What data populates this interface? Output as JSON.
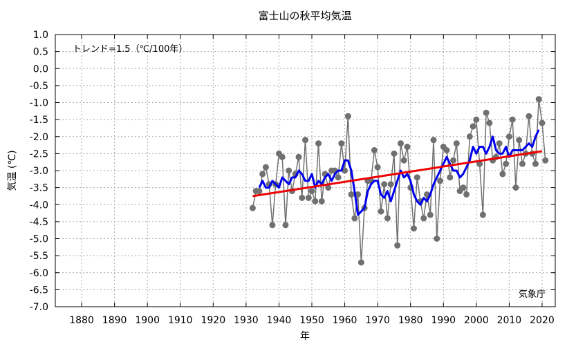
{
  "chart_data": {
    "type": "line",
    "title": "富士山の秋平均気温",
    "xlabel": "年",
    "ylabel": "気温 (℃)",
    "xlim": [
      1872,
      2024
    ],
    "ylim": [
      -7.0,
      1.0
    ],
    "xticks": [
      1880,
      1890,
      1900,
      1910,
      1920,
      1930,
      1940,
      1950,
      1960,
      1970,
      1980,
      1990,
      2000,
      2010,
      2020
    ],
    "yticks": [
      1.0,
      0.5,
      0.0,
      -0.5,
      -1.0,
      -1.5,
      -2.0,
      -2.5,
      -3.0,
      -3.5,
      -4.0,
      -4.5,
      -5.0,
      -5.5,
      -6.0,
      -6.5,
      -7.0
    ],
    "ytick_labels": [
      "1.0",
      "0.5",
      "0.0",
      "-0.5",
      "-1.0",
      "-1.5",
      "-2.0",
      "-2.5",
      "-3.0",
      "-3.5",
      "-4.0",
      "-4.5",
      "-5.0",
      "-5.5",
      "-6.0",
      "-6.5",
      "-7.0"
    ],
    "grid": true,
    "trend_text": "トレンド=1.5（℃/100年）",
    "source": "気象庁",
    "series": [
      {
        "style": "annual",
        "color": "#707070",
        "x": [
          1932,
          1933,
          1934,
          1935,
          1936,
          1937,
          1938,
          1939,
          1940,
          1941,
          1942,
          1943,
          1944,
          1945,
          1946,
          1947,
          1948,
          1949,
          1950,
          1951,
          1952,
          1953,
          1954,
          1955,
          1956,
          1957,
          1958,
          1959,
          1960,
          1961,
          1962,
          1963,
          1964,
          1965,
          1966,
          1967,
          1968,
          1969,
          1970,
          1971,
          1972,
          1973,
          1974,
          1975,
          1976,
          1977,
          1978,
          1979,
          1980,
          1981,
          1982,
          1983,
          1984,
          1985,
          1986,
          1987,
          1988,
          1989,
          1990,
          1991,
          1992,
          1993,
          1994,
          1995,
          1996,
          1997,
          1998,
          1999,
          2000,
          2001,
          2002,
          2003,
          2004,
          2005,
          2006,
          2007,
          2008,
          2009,
          2010,
          2011,
          2012,
          2013,
          2014,
          2015,
          2016,
          2017,
          2018,
          2019,
          2020,
          2021
        ],
        "y": [
          -4.1,
          -3.6,
          -3.6,
          -3.1,
          -2.9,
          -3.4,
          -4.6,
          -3.4,
          -2.5,
          -2.6,
          -4.6,
          -3.0,
          -3.6,
          -3.1,
          -2.6,
          -3.8,
          -2.1,
          -3.8,
          -3.6,
          -3.9,
          -2.2,
          -3.9,
          -3.1,
          -3.5,
          -3.0,
          -3.0,
          -3.2,
          -2.2,
          -3.0,
          -1.4,
          -3.7,
          -4.4,
          -3.7,
          -5.7,
          -4.1,
          -3.3,
          -3.3,
          -2.4,
          -2.9,
          -4.2,
          -3.4,
          -4.4,
          -3.4,
          -2.5,
          -5.2,
          -2.2,
          -2.7,
          -2.3,
          -3.5,
          -4.7,
          -3.2,
          -3.9,
          -4.4,
          -3.7,
          -4.3,
          -2.1,
          -5.0,
          -3.3,
          -2.3,
          -2.4,
          -3.2,
          -2.7,
          -2.2,
          -3.6,
          -3.5,
          -3.7,
          -2.0,
          -1.7,
          -1.5,
          -2.8,
          -4.3,
          -1.3,
          -1.6,
          -2.7,
          -2.6,
          -2.2,
          -3.1,
          -2.8,
          -2.0,
          -1.5,
          -3.5,
          -2.1,
          -2.8,
          -2.5,
          -1.4,
          -2.5,
          -2.8,
          -0.9,
          -1.6,
          -2.7
        ]
      },
      {
        "style": "moving_average",
        "color": "#0000ee",
        "x": [
          1934,
          1935,
          1936,
          1937,
          1938,
          1939,
          1940,
          1941,
          1942,
          1943,
          1944,
          1945,
          1946,
          1947,
          1948,
          1949,
          1950,
          1951,
          1952,
          1953,
          1954,
          1955,
          1956,
          1957,
          1958,
          1959,
          1960,
          1961,
          1962,
          1963,
          1964,
          1965,
          1966,
          1967,
          1968,
          1969,
          1970,
          1971,
          1972,
          1973,
          1974,
          1975,
          1976,
          1977,
          1978,
          1979,
          1980,
          1981,
          1982,
          1983,
          1984,
          1985,
          1986,
          1987,
          1988,
          1989,
          1990,
          1991,
          1992,
          1993,
          1994,
          1995,
          1996,
          1997,
          1998,
          1999,
          2000,
          2001,
          2002,
          2003,
          2004,
          2005,
          2006,
          2007,
          2008,
          2009,
          2010,
          2011,
          2012,
          2013,
          2014,
          2015,
          2016,
          2017,
          2018,
          2019
        ],
        "y": [
          -3.5,
          -3.3,
          -3.5,
          -3.5,
          -3.3,
          -3.4,
          -3.5,
          -3.2,
          -3.3,
          -3.4,
          -3.2,
          -3.2,
          -3.0,
          -3.1,
          -3.3,
          -3.3,
          -3.1,
          -3.5,
          -3.3,
          -3.4,
          -3.2,
          -3.1,
          -3.3,
          -3.1,
          -3.0,
          -3.0,
          -2.7,
          -2.7,
          -3.0,
          -3.6,
          -4.3,
          -4.2,
          -4.1,
          -3.6,
          -3.4,
          -3.3,
          -3.3,
          -3.7,
          -3.8,
          -3.6,
          -3.9,
          -3.6,
          -3.3,
          -3.0,
          -3.2,
          -3.1,
          -3.3,
          -3.7,
          -3.9,
          -4.0,
          -3.8,
          -3.9,
          -3.7,
          -3.4,
          -3.2,
          -3.0,
          -2.8,
          -2.6,
          -2.8,
          -3.0,
          -3.0,
          -3.2,
          -3.1,
          -2.9,
          -2.7,
          -2.3,
          -2.5,
          -2.3,
          -2.3,
          -2.5,
          -2.3,
          -2.0,
          -2.4,
          -2.5,
          -2.5,
          -2.3,
          -2.6,
          -2.4,
          -2.4,
          -2.4,
          -2.4,
          -2.3,
          -2.2,
          -2.3,
          -2.0,
          -1.8
        ]
      },
      {
        "style": "trend",
        "color": "#ee0000",
        "x": [
          1932,
          2020
        ],
        "y": [
          -3.75,
          -2.43
        ]
      }
    ]
  }
}
